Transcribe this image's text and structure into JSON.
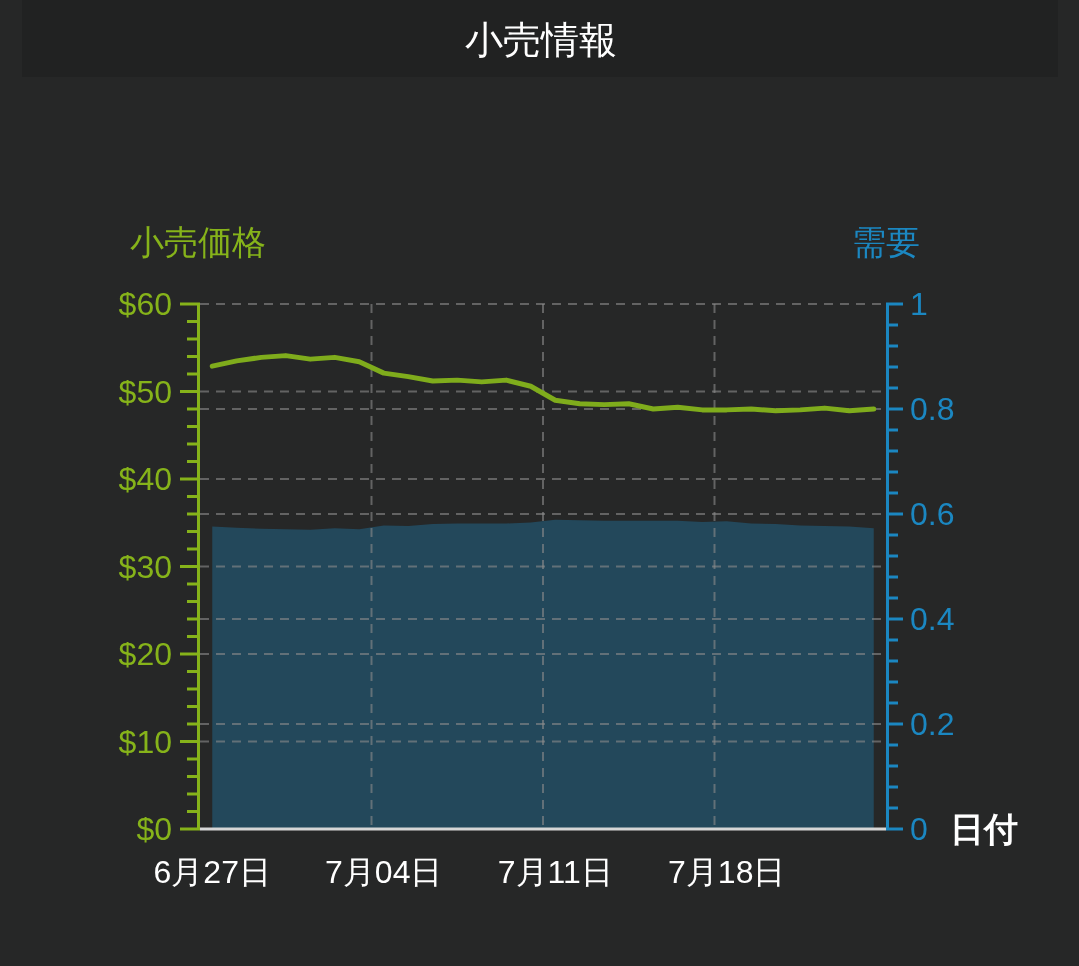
{
  "chart_data": {
    "type": "line",
    "title": "小売情報",
    "xlabel": "日付",
    "ylabel": "小売価格",
    "y2label": "需要",
    "categories": [
      "6月27日",
      null,
      null,
      null,
      null,
      null,
      null,
      "7月04日",
      null,
      null,
      null,
      null,
      null,
      null,
      "7月11日",
      null,
      null,
      null,
      null,
      null,
      null,
      "7月18日",
      null,
      null,
      null,
      null,
      null,
      null
    ],
    "series": [
      {
        "type": "area",
        "axis": "y2",
        "color": "#23485b",
        "values": [
          0.576,
          0.574,
          0.572,
          0.571,
          0.57,
          0.573,
          0.571,
          0.578,
          0.577,
          0.581,
          0.582,
          0.582,
          0.582,
          0.584,
          0.589,
          0.588,
          0.587,
          0.587,
          0.587,
          0.587,
          0.585,
          0.586,
          0.582,
          0.581,
          0.578,
          0.577,
          0.576,
          0.573
        ]
      },
      {
        "color": "#7fac1c",
        "values": [
          52.9,
          53.5,
          53.9,
          54.1,
          53.7,
          53.9,
          53.4,
          52.1,
          51.7,
          51.2,
          51.3,
          51.1,
          51.3,
          50.6,
          49.0,
          48.6,
          48.5,
          48.6,
          48.0,
          48.2,
          47.9,
          47.9,
          48.0,
          47.8,
          47.9,
          48.1,
          47.8,
          48.0
        ]
      }
    ],
    "ylim": [
      0,
      60
    ],
    "yticks": [
      {
        "value": 0,
        "label": "$0"
      },
      {
        "value": 2,
        "label": null
      },
      {
        "value": 4,
        "label": null
      },
      {
        "value": 6,
        "label": null
      },
      {
        "value": 8,
        "label": null
      },
      {
        "value": 10,
        "label": "$10"
      },
      {
        "value": 12,
        "label": null
      },
      {
        "value": 14,
        "label": null
      },
      {
        "value": 16,
        "label": null
      },
      {
        "value": 18,
        "label": null
      },
      {
        "value": 20,
        "label": "$20"
      },
      {
        "value": 22,
        "label": null
      },
      {
        "value": 24,
        "label": null
      },
      {
        "value": 26,
        "label": null
      },
      {
        "value": 28,
        "label": null
      },
      {
        "value": 30,
        "label": "$30"
      },
      {
        "value": 32,
        "label": null
      },
      {
        "value": 34,
        "label": null
      },
      {
        "value": 36,
        "label": null
      },
      {
        "value": 38,
        "label": null
      },
      {
        "value": 40,
        "label": "$40"
      },
      {
        "value": 42,
        "label": null
      },
      {
        "value": 44,
        "label": null
      },
      {
        "value": 46,
        "label": null
      },
      {
        "value": 48,
        "label": null
      },
      {
        "value": 50,
        "label": "$50"
      },
      {
        "value": 52,
        "label": null
      },
      {
        "value": 54,
        "label": null
      },
      {
        "value": 56,
        "label": null
      },
      {
        "value": 58,
        "label": null
      },
      {
        "value": 60,
        "label": "$60"
      }
    ],
    "y2lim": [
      0,
      1
    ],
    "y2ticks": [
      0,
      {
        "value": 0.04,
        "label": null
      },
      {
        "value": 0.08,
        "label": null
      },
      {
        "value": 0.12,
        "label": null
      },
      {
        "value": 0.16,
        "label": null
      },
      0.2,
      {
        "value": 0.24,
        "label": null
      },
      {
        "value": 0.28,
        "label": null
      },
      {
        "value": 0.32,
        "label": null
      },
      {
        "value": 0.36,
        "label": null
      },
      0.4,
      {
        "value": 0.44,
        "label": null
      },
      {
        "value": 0.48,
        "label": null
      },
      {
        "value": 0.52,
        "label": null
      },
      {
        "value": 0.56,
        "label": null
      },
      0.6,
      {
        "value": 0.64,
        "label": null
      },
      {
        "value": 0.68,
        "label": null
      },
      {
        "value": 0.72,
        "label": null
      },
      {
        "value": 0.76,
        "label": null
      },
      0.8,
      {
        "value": 0.84,
        "label": null
      },
      {
        "value": 0.88,
        "label": null
      },
      {
        "value": 0.92,
        "label": null
      },
      {
        "value": 0.96,
        "label": null
      },
      1
    ],
    "grid": true
  }
}
